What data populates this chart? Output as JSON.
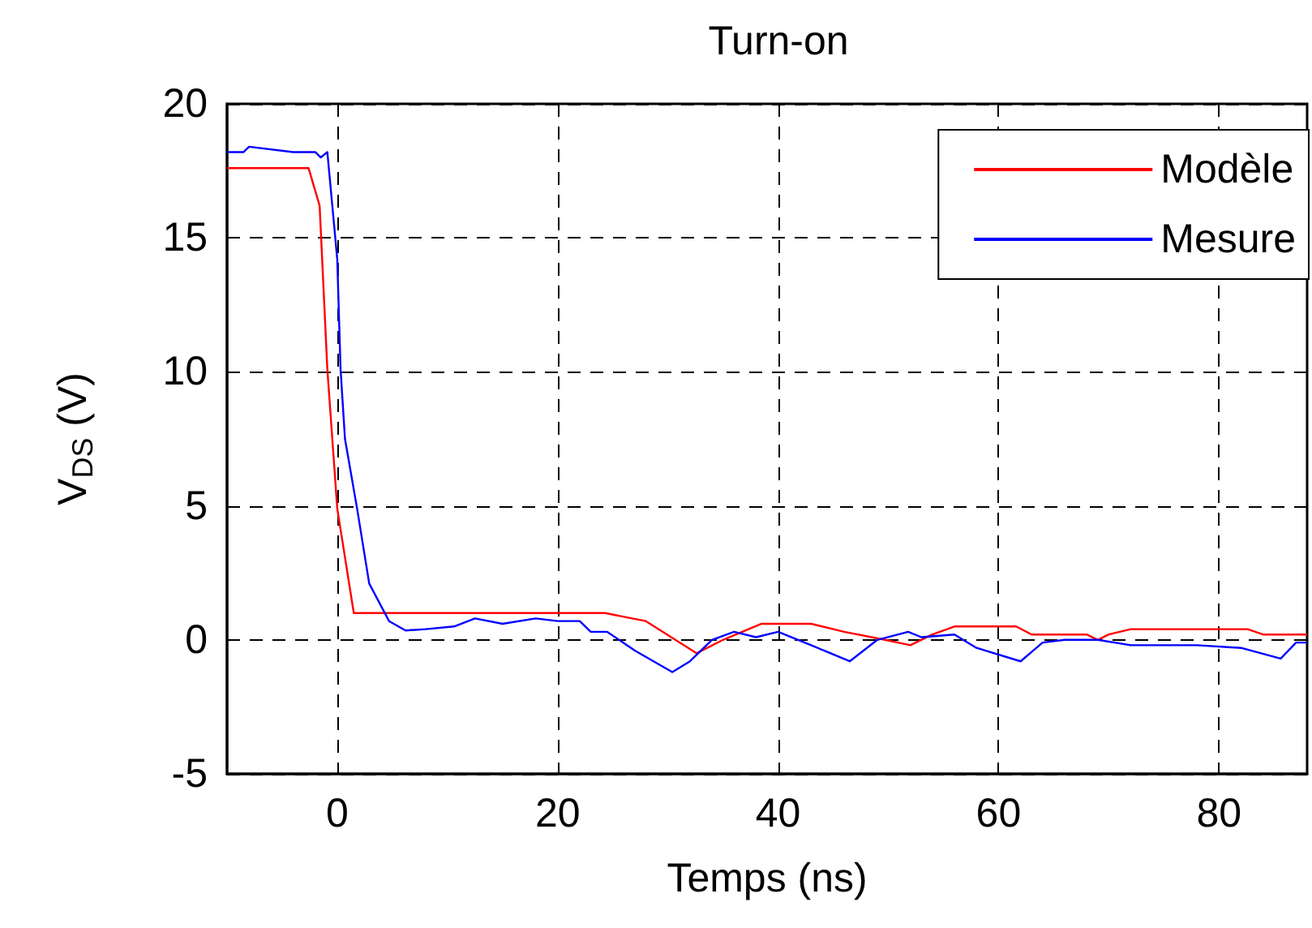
{
  "chart_data": {
    "type": "line",
    "title": "Turn-on",
    "xlabel": "Temps (ns)",
    "ylabel": "V$_{DS}$ (V)",
    "xlim": [
      -10,
      88
    ],
    "xticks": [
      0,
      20,
      40,
      60,
      80
    ],
    "ylim": [
      -5,
      20
    ],
    "yticks": [
      -5,
      0,
      5,
      10,
      15,
      20
    ],
    "grid": true,
    "legend": "top right",
    "marker": "none",
    "line_style": "solid",
    "series": [
      {
        "name": "Modèle",
        "color": "#ff0000",
        "x": [
          -10,
          -2.6,
          -1.6,
          -0.9,
          0,
          1.5,
          24.3,
          28,
          32.6,
          35,
          38.5,
          43,
          46,
          49.7,
          52,
          54,
          56,
          61.6,
          63,
          68,
          69,
          70,
          72,
          82.6,
          84,
          88
        ],
        "values": [
          17.6,
          17.6,
          16.2,
          10.1,
          4.9,
          1.0,
          1.0,
          0.7,
          -0.5,
          0,
          0.6,
          0.6,
          0.3,
          0,
          -0.2,
          0.2,
          0.5,
          0.5,
          0.2,
          0.2,
          0,
          0.2,
          0.4,
          0.4,
          0.2,
          0.2
        ]
      },
      {
        "name": "Mesure",
        "color": "#0000ff",
        "x": [
          -10,
          -8.5,
          -8,
          -4,
          -2,
          -1.5,
          -0.9,
          0,
          0.3,
          0.7,
          1.8,
          2.9,
          4.7,
          6.2,
          8,
          10.6,
          12.5,
          15,
          18,
          20,
          22,
          23,
          24.5,
          27,
          30.4,
          32,
          34,
          36,
          38,
          40,
          43,
          46.5,
          49,
          51.8,
          53,
          56,
          58,
          62,
          64,
          66,
          69,
          72,
          78,
          82,
          85.6,
          87,
          88
        ],
        "values": [
          18.2,
          18.2,
          18.4,
          18.2,
          18.2,
          18.0,
          18.2,
          14.2,
          10.1,
          7.5,
          4.9,
          2.1,
          0.7,
          0.35,
          0.4,
          0.5,
          0.8,
          0.6,
          0.8,
          0.7,
          0.7,
          0.3,
          0.3,
          -0.4,
          -1.2,
          -0.8,
          0,
          0.3,
          0.1,
          0.3,
          -0.2,
          -0.8,
          0,
          0.3,
          0.1,
          0.2,
          -0.3,
          -0.8,
          -0.1,
          0,
          0,
          -0.2,
          -0.2,
          -0.3,
          -0.7,
          -0.1,
          -0.1
        ]
      }
    ]
  }
}
